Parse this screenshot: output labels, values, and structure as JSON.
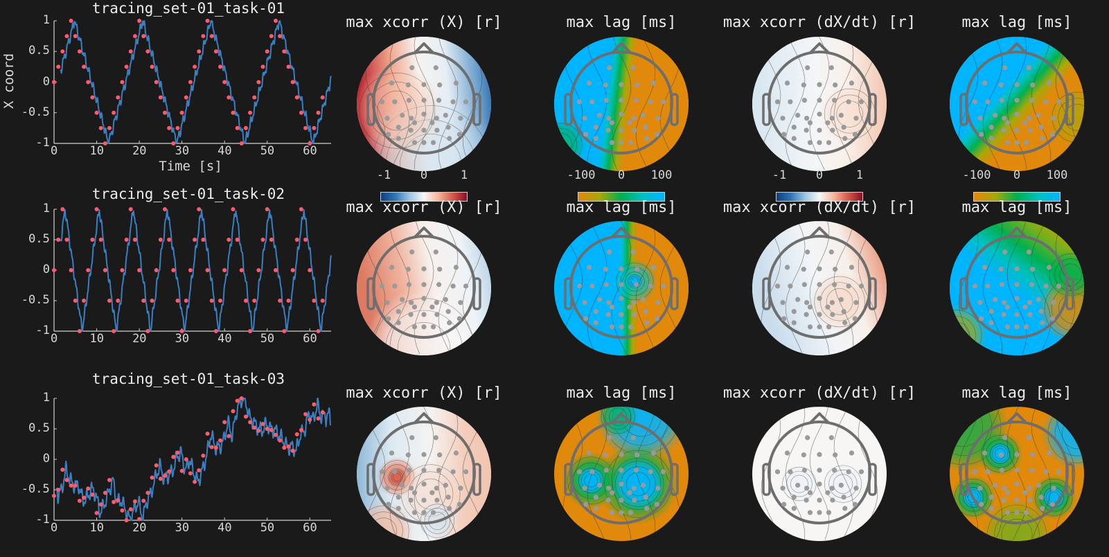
{
  "figure": {
    "background": "#1a1a1a",
    "text_color": "#e6e6e6",
    "line_color": "#3a7fc1",
    "marker_color": "#ff5a6a",
    "cmap_xcorr": [
      "#0d3f7f",
      "#2f74b5",
      "#9cc6e0",
      "#f7f7f7",
      "#f5b59a",
      "#d45a4a",
      "#8b0f25"
    ],
    "cmap_lag": [
      "#e0890a",
      "#a8a80a",
      "#00b050",
      "#00c0c0",
      "#00b4ff"
    ]
  },
  "rows": [
    {
      "title": "tracing_set-01_task-01",
      "ylabel": "X coord",
      "xlabel": "Time [s]",
      "topo_titles": [
        "max xcorr (X) [r]",
        "max lag [ms]",
        "max xcorr (dX/dt) [r]",
        "max lag [ms]"
      ],
      "colorbars": [
        {
          "ticks": [
            "-1",
            "0",
            "1"
          ],
          "cmap": "xcorr"
        },
        {
          "ticks": [
            "-100",
            "0",
            "100"
          ],
          "cmap": "lag"
        },
        {
          "ticks": [
            "-1",
            "0",
            "1"
          ],
          "cmap": "xcorr"
        },
        {
          "ticks": [
            "-100",
            "0",
            "100"
          ],
          "cmap": "lag"
        }
      ]
    },
    {
      "title": "tracing_set-01_task-02",
      "topo_titles": [
        "max xcorr (X) [r]",
        "max lag [ms]",
        "max xcorr (dX/dt) [r]",
        "max lag [ms]"
      ]
    },
    {
      "title": "tracing_set-01_task-03",
      "topo_titles": [
        "max xcorr (X) [r]",
        "max lag [ms]",
        "max xcorr (dX/dt) [r]",
        "max lag [ms]"
      ]
    }
  ],
  "axis": {
    "xticks": [
      "0",
      "10",
      "20",
      "30",
      "40",
      "50",
      "60"
    ],
    "yticks": [
      "1",
      "0.5",
      "0",
      "-0.5",
      "-1"
    ]
  },
  "chart_data": [
    {
      "type": "line",
      "title": "tracing_set-01_task-01",
      "xlabel": "Time [s]",
      "ylabel": "X coord",
      "xlim": [
        0,
        65
      ],
      "ylim": [
        -1,
        1
      ],
      "grid": false,
      "series": [
        {
          "name": "target (markers)",
          "x": [
            0,
            1,
            2,
            3,
            4,
            5,
            6,
            7,
            8,
            9,
            10,
            11,
            12,
            13,
            14,
            15,
            16,
            17,
            18,
            19,
            20,
            21,
            22,
            23,
            24,
            25,
            26,
            27,
            28,
            29,
            30,
            31,
            32,
            33,
            34,
            35,
            36,
            37,
            38,
            39,
            40,
            41,
            42,
            43,
            44,
            45,
            46,
            47,
            48,
            49,
            50,
            51,
            52,
            53,
            54,
            55,
            56,
            57,
            58,
            59,
            60,
            61,
            62,
            63
          ],
          "y": [
            0,
            0.25,
            0.5,
            0.75,
            1,
            0.75,
            0.5,
            0.25,
            0,
            -0.25,
            -0.5,
            -0.75,
            -1,
            -0.75,
            -0.5,
            -0.25,
            0,
            0.25,
            0.5,
            0.75,
            1,
            0.75,
            0.5,
            0.25,
            0,
            -0.25,
            -0.5,
            -0.75,
            -1,
            -0.75,
            -0.5,
            -0.25,
            0,
            0.25,
            0.5,
            0.75,
            1,
            0.75,
            0.5,
            0.25,
            0,
            -0.25,
            -0.5,
            -0.75,
            -1,
            -0.75,
            -0.5,
            -0.25,
            0,
            0.25,
            0.5,
            0.75,
            1,
            0.75,
            0.5,
            0.25,
            0,
            -0.25,
            -0.5,
            -0.75,
            -1,
            -0.75,
            -0.5,
            -0.25
          ]
        },
        {
          "name": "trace (line)",
          "period_s": 16,
          "lag_s": 0.8,
          "x_start": 1.5,
          "x_end": 65
        }
      ]
    },
    {
      "type": "line",
      "title": "tracing_set-01_task-02",
      "xlim": [
        0,
        65
      ],
      "ylim": [
        -1,
        1
      ],
      "series": [
        {
          "name": "target (markers)",
          "x": [
            0,
            1,
            2,
            3,
            4,
            5,
            6,
            7,
            8,
            9,
            10,
            11,
            12,
            13,
            14,
            15,
            16,
            17,
            18,
            19,
            20,
            21,
            22,
            23,
            24,
            25,
            26,
            27,
            28,
            29,
            30,
            31,
            32,
            33,
            34,
            35,
            36,
            37,
            38,
            39,
            40,
            41,
            42,
            43,
            44,
            45,
            46,
            47,
            48,
            49,
            50,
            51,
            52,
            53,
            54,
            55,
            56,
            57,
            58,
            59,
            60,
            61,
            62,
            63
          ],
          "y": [
            0,
            0.5,
            1,
            0.5,
            0,
            -0.5,
            -1,
            -0.5,
            0,
            0.5,
            1,
            0.5,
            0,
            -0.5,
            -1,
            -0.5,
            0,
            0.5,
            1,
            0.5,
            0,
            -0.5,
            -1,
            -0.5,
            0,
            0.5,
            1,
            0.5,
            0,
            -0.5,
            -1,
            -0.5,
            0,
            0.5,
            1,
            0.5,
            0,
            -0.5,
            -1,
            -0.5,
            0,
            0.5,
            1,
            0.5,
            0,
            -0.5,
            -1,
            -0.5,
            0,
            0.5,
            1,
            0.5,
            0,
            -0.5,
            -1,
            -0.5,
            0,
            0.5,
            1,
            0.5,
            0,
            -0.5,
            -1,
            -0.5
          ]
        },
        {
          "name": "trace (line)",
          "period_s": 8,
          "lag_s": 0.6,
          "x_start": 1.5,
          "x_end": 65
        }
      ]
    },
    {
      "type": "line",
      "title": "tracing_set-01_task-03",
      "xlim": [
        0,
        65
      ],
      "ylim": [
        -1,
        1
      ],
      "series": [
        {
          "name": "target (markers)",
          "x": [
            0,
            1,
            2,
            3,
            4,
            5,
            6,
            7,
            8,
            9,
            10,
            11,
            12,
            13,
            14,
            15,
            16,
            17,
            18,
            19,
            20,
            21,
            22,
            23,
            24,
            25,
            26,
            27,
            28,
            29,
            30,
            31,
            32,
            33,
            34,
            35,
            36,
            37,
            38,
            39,
            40,
            41,
            42,
            43,
            44,
            45,
            46,
            47,
            48,
            49,
            50,
            51,
            52,
            53,
            54,
            55,
            56,
            57,
            58,
            59,
            60,
            61,
            62,
            63
          ],
          "y": [
            -0.6,
            -0.5,
            -0.17,
            -0.34,
            -0.43,
            -0.43,
            -0.68,
            -0.63,
            -0.48,
            -0.58,
            -0.88,
            -0.74,
            -0.55,
            -0.34,
            -0.7,
            -0.67,
            -0.84,
            -1,
            -0.82,
            -0.69,
            -0.98,
            -0.68,
            -0.55,
            -0.3,
            -0.1,
            -0.32,
            -0.27,
            -0.2,
            0.04,
            0.11,
            -0.19,
            0,
            -0.23,
            -0.37,
            -0.18,
            0.06,
            0.42,
            0.2,
            0.19,
            0.31,
            0.61,
            0.38,
            0.79,
            0.96,
            1,
            0.7,
            0.61,
            0.52,
            0.47,
            0.58,
            0.5,
            0.48,
            0.4,
            0.31,
            0.19,
            0.21,
            0.14,
            0.41,
            0.48,
            0.74,
            0.65,
            0.9,
            0.67,
            0.77
          ]
        },
        {
          "name": "trace (line)",
          "follows_markers": true,
          "lag_s": 0.8
        }
      ]
    },
    {
      "type": "heatmap",
      "title": "topographic scalp maps (3 tasks × 4 measures)",
      "columns": [
        "max xcorr (X) [r]",
        "max lag [ms]",
        "max xcorr (dX/dt) [r]",
        "max lag [ms]"
      ],
      "colorbar_ranges": [
        [
          -1,
          1
        ],
        [
          -100,
          100
        ],
        [
          -1,
          1
        ],
        [
          -100,
          100
        ]
      ],
      "maps": [
        [
          {
            "desc": "red left-frontal (~0.8), blue right-frontal (~-0.6), near-white center"
          },
          {
            "desc": "cyan (+100) left hemisphere, orange (-100) right, sharp green band along midline"
          },
          {
            "desc": "near zero everywhere, faint blue left, faint red right"
          },
          {
            "desc": "cyan upper-left, orange lower-right, diagonal green band"
          }
        ],
        [
          {
            "desc": "red left (~0.6), faint blue right, white center"
          },
          {
            "desc": "cyan left, orange right, green band with focal cyan spot right-central"
          },
          {
            "desc": "faint blue left, red right-frontal (~0.5)"
          },
          {
            "desc": "mostly cyan/green, orange on right temporal edge and lower-left"
          }
        ],
        [
          {
            "desc": "mixed near-zero, focal red left-central, faint blue periphery"
          },
          {
            "desc": "orange overall, cyan blobs left-central and right-central, cyan right-frontal"
          },
          {
            "desc": "white (~0) everywhere, many contour loops"
          },
          {
            "desc": "orange/green overall, three cyan focal spots (frontal-center, left-temporal, right-temporal), cyan right-frontal edge"
          }
        ]
      ]
    }
  ]
}
